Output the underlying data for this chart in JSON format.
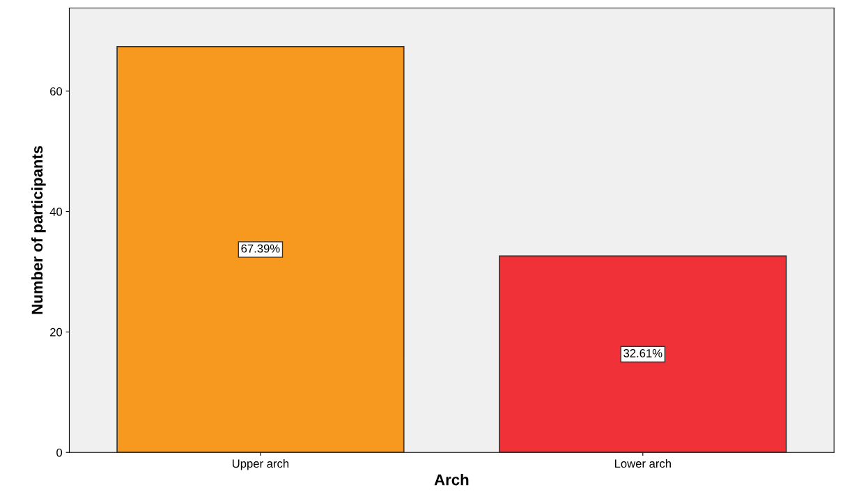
{
  "chart_data": {
    "type": "bar",
    "xlabel": "Arch",
    "ylabel": "Number of participants",
    "categories": [
      "Upper arch",
      "Lower arch"
    ],
    "values": [
      67.39,
      32.61
    ],
    "colors": [
      "#f7991e",
      "#f03238"
    ],
    "value_labels": [
      "67.39%",
      "32.61%"
    ],
    "ylim": [
      0,
      73.8
    ],
    "yticks": [
      0,
      20,
      40,
      60
    ],
    "grid": false,
    "legend": false
  }
}
